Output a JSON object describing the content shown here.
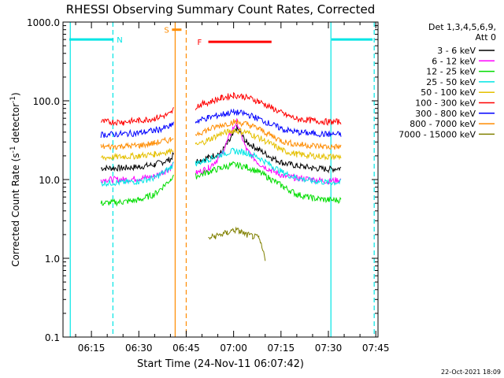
{
  "chart_data": {
    "type": "line",
    "title": "RHESSI Observing Summary Count Rates, Corrected",
    "xlabel": "Start Time (24-Nov-11 06:07:42)",
    "ylabel_main": "Corrected Count Rate (s",
    "ylabel_sup": "-1",
    "ylabel_mid": " detector",
    "ylabel_sup2": "-1",
    "ylabel_end": ")",
    "yscale": "log",
    "ylim": [
      0.1,
      1000
    ],
    "xlim_minutes": [
      6.0,
      47.2
    ],
    "xticks": [
      {
        "label": "06:15",
        "minute": 15
      },
      {
        "label": "06:30",
        "minute": 30
      },
      {
        "label": "06:45",
        "minute": 45
      },
      {
        "label": "07:00",
        "minute": 60
      },
      {
        "label": "07:15",
        "minute": 75
      },
      {
        "label": "07:30",
        "minute": 90
      },
      {
        "label": "07:45",
        "minute": 105
      }
    ],
    "yticks": [
      {
        "label": "0.1",
        "value": 0.1
      },
      {
        "label": "1.0",
        "value": 1
      },
      {
        "label": "10.0",
        "value": 10
      },
      {
        "label": "100.0",
        "value": 100
      },
      {
        "label": "1000.0",
        "value": 1000
      }
    ],
    "legend_header": [
      "Det 1,3,4,5,6,9,",
      "Att 0"
    ],
    "legend_placement": "top-right",
    "flags": [
      {
        "label": "N",
        "color": "#00e5e5",
        "segments": [
          [
            8,
            22
          ],
          [
            91,
            104
          ]
        ],
        "level": 600
      },
      {
        "label": "S",
        "color": "#ff8c00",
        "segments": [
          [
            40.5,
            43.5
          ]
        ],
        "level": 800
      },
      {
        "label": "F",
        "color": "#ff0000",
        "segments": [
          [
            52,
            72
          ]
        ],
        "level": 560
      }
    ],
    "vlines": [
      {
        "minute": 8.3,
        "color": "#00e5e5",
        "style": "solid"
      },
      {
        "minute": 21.8,
        "color": "#00e5e5",
        "style": "dashed"
      },
      {
        "minute": 41.5,
        "color": "#ff8c00",
        "style": "solid"
      },
      {
        "minute": 45.0,
        "color": "#ff8c00",
        "style": "dashed"
      },
      {
        "minute": 90.8,
        "color": "#00e5e5",
        "style": "solid"
      },
      {
        "minute": 104.5,
        "color": "#00e5e5",
        "style": "dashed"
      }
    ],
    "series": [
      {
        "name": "3 - 6 keV",
        "color": "#000000",
        "points": [
          [
            18,
            14
          ],
          [
            25,
            14
          ],
          [
            30,
            14.5
          ],
          [
            35,
            15.5
          ],
          [
            40,
            18
          ],
          [
            41,
            21
          ],
          [
            48,
            17
          ],
          [
            52,
            19
          ],
          [
            56,
            22
          ],
          [
            59,
            32
          ],
          [
            61,
            45
          ],
          [
            64,
            30
          ],
          [
            68,
            24
          ],
          [
            72,
            19
          ],
          [
            76,
            16
          ],
          [
            80,
            15
          ],
          [
            85,
            14
          ],
          [
            90,
            13.5
          ],
          [
            94,
            14
          ]
        ]
      },
      {
        "name": "6 - 12 keV",
        "color": "#ff00ff",
        "points": [
          [
            18,
            10
          ],
          [
            25,
            10
          ],
          [
            30,
            10.3
          ],
          [
            35,
            11
          ],
          [
            40,
            14
          ],
          [
            41,
            16
          ],
          [
            48,
            12
          ],
          [
            52,
            14
          ],
          [
            56,
            20
          ],
          [
            59,
            38
          ],
          [
            61,
            55
          ],
          [
            64,
            24
          ],
          [
            68,
            16
          ],
          [
            72,
            13
          ],
          [
            76,
            11
          ],
          [
            80,
            10.5
          ],
          [
            85,
            10
          ],
          [
            90,
            9.5
          ],
          [
            94,
            10
          ]
        ]
      },
      {
        "name": "12 - 25 keV",
        "color": "#00dd00",
        "points": [
          [
            18,
            5
          ],
          [
            25,
            5.2
          ],
          [
            30,
            5.5
          ],
          [
            35,
            6.5
          ],
          [
            40,
            10
          ],
          [
            41,
            12
          ],
          [
            48,
            11
          ],
          [
            52,
            12.5
          ],
          [
            56,
            14
          ],
          [
            60,
            15.5
          ],
          [
            64,
            14.5
          ],
          [
            68,
            12.5
          ],
          [
            72,
            10
          ],
          [
            76,
            8
          ],
          [
            80,
            6.5
          ],
          [
            85,
            5.8
          ],
          [
            90,
            5.5
          ],
          [
            94,
            5.5
          ]
        ]
      },
      {
        "name": "25 - 50 keV",
        "color": "#00e5e5",
        "points": [
          [
            18,
            9
          ],
          [
            25,
            9.2
          ],
          [
            30,
            9.5
          ],
          [
            35,
            10.5
          ],
          [
            40,
            14
          ],
          [
            41,
            16
          ],
          [
            48,
            16
          ],
          [
            52,
            18
          ],
          [
            56,
            21
          ],
          [
            60,
            23
          ],
          [
            64,
            22
          ],
          [
            68,
            19
          ],
          [
            72,
            15
          ],
          [
            76,
            12
          ],
          [
            80,
            10.5
          ],
          [
            85,
            9.6
          ],
          [
            90,
            9.2
          ],
          [
            94,
            9.2
          ]
        ]
      },
      {
        "name": "50 - 100 keV",
        "color": "#e5c000",
        "points": [
          [
            18,
            19
          ],
          [
            25,
            19.5
          ],
          [
            30,
            20
          ],
          [
            35,
            21
          ],
          [
            40,
            23
          ],
          [
            41,
            25
          ],
          [
            48,
            27
          ],
          [
            52,
            32
          ],
          [
            56,
            38
          ],
          [
            60,
            42
          ],
          [
            64,
            40
          ],
          [
            68,
            34
          ],
          [
            72,
            28
          ],
          [
            76,
            23
          ],
          [
            80,
            21
          ],
          [
            85,
            20
          ],
          [
            90,
            19.5
          ],
          [
            94,
            19.5
          ]
        ]
      },
      {
        "name": "100 - 300 keV",
        "color": "#ff0000",
        "points": [
          [
            18,
            54
          ],
          [
            25,
            54
          ],
          [
            30,
            56
          ],
          [
            35,
            60
          ],
          [
            40,
            68
          ],
          [
            41,
            78
          ],
          [
            48,
            85
          ],
          [
            52,
            96
          ],
          [
            56,
            108
          ],
          [
            60,
            118
          ],
          [
            64,
            112
          ],
          [
            68,
            98
          ],
          [
            72,
            82
          ],
          [
            76,
            67
          ],
          [
            80,
            59
          ],
          [
            85,
            56
          ],
          [
            90,
            54
          ],
          [
            94,
            54
          ]
        ]
      },
      {
        "name": "300 - 800 keV",
        "color": "#0000ff",
        "points": [
          [
            18,
            37
          ],
          [
            25,
            38
          ],
          [
            30,
            39
          ],
          [
            35,
            42
          ],
          [
            40,
            47
          ],
          [
            41,
            53
          ],
          [
            48,
            55
          ],
          [
            52,
            61
          ],
          [
            56,
            67
          ],
          [
            60,
            72
          ],
          [
            64,
            68
          ],
          [
            68,
            59
          ],
          [
            72,
            50
          ],
          [
            76,
            43
          ],
          [
            80,
            40
          ],
          [
            85,
            38.5
          ],
          [
            90,
            37.5
          ],
          [
            94,
            37.5
          ]
        ]
      },
      {
        "name": "800 - 7000 keV",
        "color": "#ff8c00",
        "points": [
          [
            18,
            26
          ],
          [
            25,
            26.5
          ],
          [
            30,
            27
          ],
          [
            35,
            29
          ],
          [
            40,
            32
          ],
          [
            41,
            36
          ],
          [
            48,
            38
          ],
          [
            52,
            43
          ],
          [
            56,
            49
          ],
          [
            60,
            54
          ],
          [
            64,
            51
          ],
          [
            68,
            44
          ],
          [
            72,
            36
          ],
          [
            76,
            30
          ],
          [
            80,
            28
          ],
          [
            85,
            27
          ],
          [
            90,
            26
          ],
          [
            94,
            26
          ]
        ]
      },
      {
        "name": "7000 - 15000 keV",
        "color": "#808000",
        "points": [
          [
            52,
            1.8
          ],
          [
            54,
            1.9
          ],
          [
            56,
            2.0
          ],
          [
            58,
            2.1
          ],
          [
            60,
            2.3
          ],
          [
            62,
            2.2
          ],
          [
            64,
            2.0
          ],
          [
            66,
            1.9
          ],
          [
            68,
            1.8
          ],
          [
            70,
            1.0
          ]
        ]
      }
    ]
  },
  "footer_date": "22-Oct-2021 18:09"
}
